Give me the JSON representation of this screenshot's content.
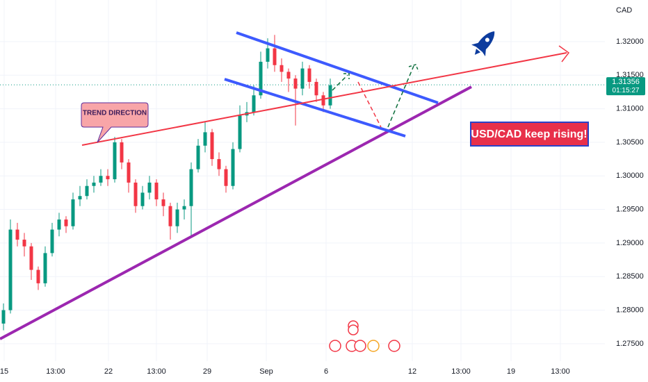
{
  "chart_data": {
    "type": "candlestick",
    "currency": "CAD",
    "open": [
      1.278,
      1.28,
      1.292,
      1.2905,
      1.2895,
      1.286,
      1.284,
      1.2885,
      1.292,
      1.2935,
      1.2925,
      1.2965,
      1.297,
      1.2985,
      1.299,
      1.3,
      1.2995,
      1.305,
      1.302,
      1.299,
      1.2955,
      1.2975,
      1.299,
      1.2965,
      1.2955,
      1.2925,
      1.295,
      1.2955,
      1.301,
      1.3045,
      1.3065,
      1.3025,
      1.301,
      1.2985,
      1.304,
      1.309,
      1.3095,
      1.312,
      1.317,
      1.319,
      1.3165,
      1.3155,
      1.3145,
      1.313,
      1.316,
      1.314,
      1.312,
      1.3105
    ],
    "high": [
      1.281,
      1.2935,
      1.293,
      1.2915,
      1.29,
      1.2865,
      1.2895,
      1.293,
      1.2945,
      1.294,
      1.2975,
      1.2985,
      1.2995,
      1.3,
      1.301,
      1.301,
      1.3058,
      1.3055,
      1.3025,
      1.2995,
      1.2985,
      1.3,
      1.2995,
      1.2975,
      1.296,
      1.296,
      1.2965,
      1.302,
      1.3055,
      1.308,
      1.307,
      1.3035,
      1.3015,
      1.305,
      1.3105,
      1.311,
      1.3135,
      1.3185,
      1.3205,
      1.321,
      1.3175,
      1.316,
      1.315,
      1.317,
      1.3165,
      1.3145,
      1.3125,
      1.3145
    ],
    "low": [
      1.277,
      1.2795,
      1.2895,
      1.288,
      1.2845,
      1.283,
      1.2835,
      1.288,
      1.291,
      1.2915,
      1.292,
      1.2955,
      1.2965,
      1.2975,
      1.2985,
      1.2985,
      1.299,
      1.301,
      1.2975,
      1.2945,
      1.295,
      1.2965,
      1.2955,
      1.294,
      1.2905,
      1.2915,
      1.2935,
      1.291,
      1.3005,
      1.3035,
      1.3015,
      1.3,
      1.2975,
      1.298,
      1.3035,
      1.308,
      1.309,
      1.3115,
      1.316,
      1.3155,
      1.314,
      1.3125,
      1.3075,
      1.312,
      1.313,
      1.311,
      1.3095,
      1.31
    ],
    "close": [
      1.28,
      1.292,
      1.2905,
      1.2895,
      1.286,
      1.284,
      1.2885,
      1.292,
      1.2935,
      1.2925,
      1.2965,
      1.297,
      1.2985,
      1.299,
      1.3,
      1.2995,
      1.305,
      1.302,
      1.299,
      1.2955,
      1.2975,
      1.299,
      1.2965,
      1.2955,
      1.2925,
      1.295,
      1.2955,
      1.301,
      1.3045,
      1.3065,
      1.3025,
      1.301,
      1.2985,
      1.304,
      1.309,
      1.3095,
      1.312,
      1.317,
      1.319,
      1.3165,
      1.3155,
      1.3145,
      1.313,
      1.316,
      1.314,
      1.312,
      1.3105,
      1.3135
    ],
    "up_color": "#089981",
    "down_color": "#f23645",
    "last_price": 1.31356,
    "countdown": "01:15:27",
    "ylim": [
      1.2724,
      1.3262
    ],
    "yticks": [
      {
        "value": 1.32,
        "label": "1.32000"
      },
      {
        "value": 1.315,
        "label": "1.31500"
      },
      {
        "value": 1.31,
        "label": "1.31000"
      },
      {
        "value": 1.305,
        "label": "1.30500"
      },
      {
        "value": 1.3,
        "label": "1.30000"
      },
      {
        "value": 1.295,
        "label": "1.29500"
      },
      {
        "value": 1.29,
        "label": "1.29000"
      },
      {
        "value": 1.285,
        "label": "1.28500"
      },
      {
        "value": 1.28,
        "label": "1.28000"
      },
      {
        "value": 1.275,
        "label": "1.27500"
      }
    ],
    "xlim": [
      0,
      87
    ],
    "xticks": [
      {
        "value": 0.6,
        "label": "15"
      },
      {
        "value": 8,
        "label": "13:00"
      },
      {
        "value": 15.6,
        "label": "22"
      },
      {
        "value": 22.5,
        "label": "13:00"
      },
      {
        "value": 29.8,
        "label": "29"
      },
      {
        "value": 38.3,
        "label": "Sep"
      },
      {
        "value": 46.9,
        "label": "6"
      },
      {
        "value": 59.3,
        "label": "12"
      },
      {
        "value": 66.3,
        "label": "13:00"
      },
      {
        "value": 73.5,
        "label": "19"
      },
      {
        "value": 80.6,
        "label": "13:00"
      }
    ],
    "grid": true,
    "annotations": [
      "TREND DIRECTION",
      "USD/CAD keep rising!"
    ]
  }
}
